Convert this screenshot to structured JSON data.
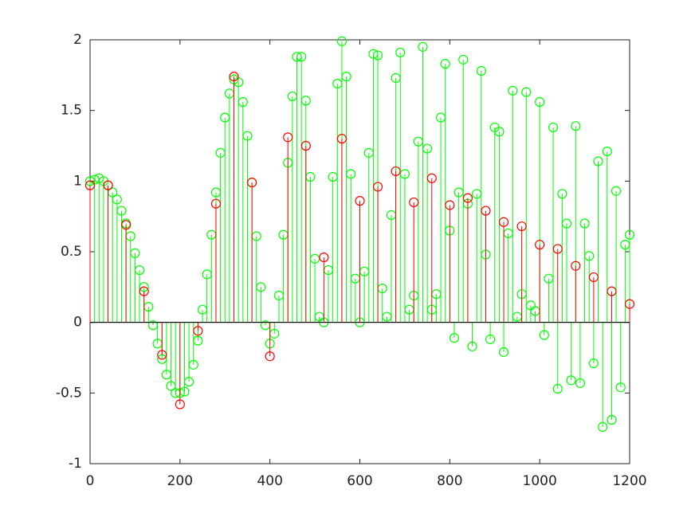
{
  "chart_data": {
    "type": "stem",
    "xlim": [
      0,
      1200
    ],
    "xticks": [
      0,
      200,
      400,
      600,
      800,
      1000,
      1200
    ],
    "ylim": [
      -1,
      2
    ],
    "yticks": [
      -1,
      -0.5,
      0,
      0.5,
      1,
      1.5,
      2
    ],
    "series": [
      {
        "color": "#00ff00",
        "x": [
          0,
          10,
          20,
          30,
          40,
          50,
          60,
          70,
          80,
          90,
          100,
          110,
          120,
          130,
          140,
          150,
          160,
          170,
          180,
          190,
          200,
          210,
          220,
          230,
          240,
          250,
          260,
          270,
          280,
          290,
          300,
          310,
          320,
          330,
          340,
          350,
          360,
          370,
          380,
          390,
          400,
          410,
          420,
          430,
          440,
          450,
          460,
          470,
          480,
          490,
          500,
          510,
          520,
          530,
          540,
          550,
          560,
          570,
          580,
          590,
          600,
          610,
          620,
          630,
          640,
          650,
          660,
          670,
          680,
          690,
          700,
          710,
          720,
          730,
          740,
          750,
          760,
          770,
          780,
          790,
          800,
          810,
          820,
          830,
          840,
          850,
          860,
          870,
          880,
          890,
          900,
          910,
          920,
          930,
          940,
          950,
          960,
          970,
          980,
          990,
          1000,
          1010,
          1020,
          1030,
          1040,
          1050,
          1060,
          1070,
          1080,
          1090,
          1100,
          1110,
          1120,
          1130,
          1140,
          1150,
          1160,
          1170,
          1180,
          1190,
          1200
        ],
        "values": [
          1.0,
          1.01,
          1.02,
          1.0,
          0.97,
          0.92,
          0.87,
          0.79,
          0.7,
          0.61,
          0.49,
          0.37,
          0.25,
          0.11,
          -0.02,
          -0.15,
          -0.26,
          -0.37,
          -0.45,
          -0.5,
          -0.5,
          -0.49,
          -0.42,
          -0.3,
          -0.13,
          0.09,
          0.34,
          0.62,
          0.92,
          1.2,
          1.45,
          1.62,
          1.72,
          1.7,
          1.56,
          1.32,
          0.99,
          0.61,
          0.25,
          -0.02,
          -0.15,
          -0.08,
          0.19,
          0.62,
          1.13,
          1.6,
          1.88,
          1.88,
          1.57,
          1.03,
          0.45,
          0.04,
          0.0,
          0.37,
          1.03,
          1.69,
          1.99,
          1.74,
          1.05,
          0.31,
          0.0,
          0.36,
          1.2,
          1.9,
          1.89,
          0.24,
          0.04,
          0.76,
          1.73,
          1.91,
          1.05,
          0.09,
          0.19,
          1.28,
          1.95,
          1.23,
          0.09,
          0.2,
          1.45,
          1.83,
          0.65,
          -0.11,
          0.92,
          1.86,
          0.84,
          -0.17,
          0.91,
          1.78,
          0.48,
          -0.12,
          1.38,
          1.35,
          -0.21,
          0.63,
          1.64,
          0.04,
          0.2,
          1.63,
          0.12,
          0.08,
          1.56,
          -0.09,
          0.31,
          1.38,
          -0.47,
          0.91,
          0.7,
          -0.41,
          1.39,
          -0.43,
          0.7,
          0.47,
          -0.29,
          1.14,
          -0.74,
          1.21,
          -0.69,
          0.93,
          -0.46,
          0.55,
          0.62
        ]
      },
      {
        "color": "#ff0000",
        "x": [
          0,
          40,
          80,
          120,
          160,
          200,
          240,
          280,
          320,
          360,
          400,
          440,
          480,
          520,
          560,
          600,
          640,
          680,
          720,
          760,
          800,
          840,
          880,
          920,
          960,
          1000,
          1040,
          1080,
          1120,
          1160,
          1200
        ],
        "values": [
          0.97,
          0.97,
          0.69,
          0.22,
          -0.23,
          -0.58,
          -0.06,
          0.84,
          1.74,
          0.99,
          -0.24,
          1.31,
          1.25,
          0.46,
          1.3,
          0.86,
          0.96,
          1.07,
          0.85,
          1.02,
          0.83,
          0.88,
          0.79,
          0.71,
          0.68,
          0.55,
          0.52,
          0.4,
          0.32,
          0.22,
          0.13
        ]
      }
    ]
  }
}
